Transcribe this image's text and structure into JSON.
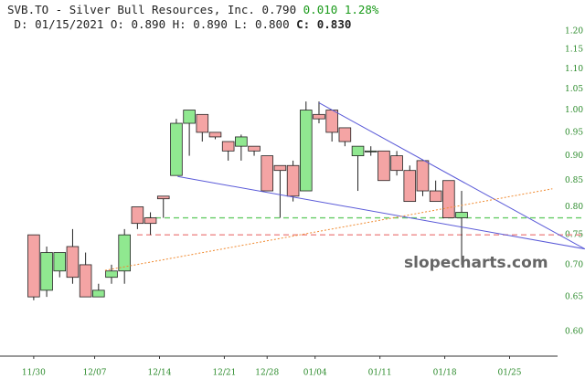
{
  "header": {
    "symbol": "SVB.TO - Silver Bull Resources, Inc.",
    "price": "0.790",
    "change": "0.010",
    "change_pct": "1.28%",
    "date": "D: 01/15/2021",
    "open": "O: 0.890",
    "high": "H: 0.890",
    "low": "L: 0.800",
    "close_label": "C:",
    "close": "0.830"
  },
  "watermark": "slopecharts.com",
  "chart_data": {
    "type": "candlestick",
    "log_scale": true,
    "up_color": "#90e890",
    "down_color": "#f4a4a4",
    "categories": [
      null,
      null,
      null,
      null,
      null,
      null,
      null,
      null,
      null,
      null,
      null,
      null,
      null,
      null,
      null,
      null,
      null,
      null,
      null,
      null,
      null,
      null,
      null,
      null,
      null,
      null,
      null,
      null,
      null,
      null,
      null,
      null,
      null,
      null
    ],
    "open": [
      0.75,
      0.66,
      0.69,
      0.73,
      0.7,
      0.65,
      0.68,
      0.69,
      0.8,
      0.78,
      0.82,
      0.86,
      0.97,
      0.99,
      0.95,
      0.93,
      0.92,
      0.92,
      0.9,
      0.88,
      0.88,
      0.83,
      0.99,
      1.0,
      0.96,
      0.9,
      0.91,
      0.91,
      0.9,
      0.87,
      0.89,
      0.83,
      0.85,
      0.78
    ],
    "high": [
      0.75,
      0.73,
      0.72,
      0.76,
      0.72,
      0.67,
      0.7,
      0.76,
      0.8,
      0.79,
      0.82,
      0.98,
      1.0,
      0.99,
      0.95,
      0.93,
      0.945,
      0.92,
      0.9,
      0.88,
      0.89,
      1.02,
      1.02,
      1.0,
      0.96,
      0.92,
      0.92,
      0.91,
      0.91,
      0.88,
      0.89,
      0.85,
      0.85,
      0.83
    ],
    "low": [
      0.645,
      0.65,
      0.68,
      0.67,
      0.65,
      0.65,
      0.67,
      0.67,
      0.76,
      0.75,
      0.78,
      0.86,
      0.9,
      0.93,
      0.935,
      0.89,
      0.89,
      0.9,
      0.83,
      0.78,
      0.81,
      0.83,
      0.97,
      0.93,
      0.92,
      0.83,
      0.9,
      0.85,
      0.86,
      0.81,
      0.82,
      0.81,
      0.78,
      0.7
    ],
    "close": [
      0.65,
      0.72,
      0.72,
      0.68,
      0.65,
      0.66,
      0.69,
      0.75,
      0.77,
      0.77,
      0.815,
      0.97,
      1.0,
      0.95,
      0.94,
      0.91,
      0.94,
      0.91,
      0.83,
      0.87,
      0.82,
      1.0,
      0.98,
      0.95,
      0.93,
      0.92,
      0.91,
      0.85,
      0.87,
      0.81,
      0.83,
      0.81,
      0.78,
      0.79
    ],
    "xlim": [
      -2.6,
      40.4
    ],
    "xticks": [
      {
        "value": 0,
        "label": "11/30"
      },
      {
        "value": 4.7,
        "label": "12/07"
      },
      {
        "value": 9.7,
        "label": "12/14"
      },
      {
        "value": 14.7,
        "label": "12/21"
      },
      {
        "value": 18,
        "label": "12/28"
      },
      {
        "value": 21.7,
        "label": "01/04"
      },
      {
        "value": 26.7,
        "label": "01/11"
      },
      {
        "value": 31.7,
        "label": "01/18"
      },
      {
        "value": 36.7,
        "label": "01/25"
      }
    ],
    "ylim": [
      0.567,
      1.289
    ],
    "yticks": [
      {
        "value": 0.6,
        "label": "0.60"
      },
      {
        "value": 0.65,
        "label": "0.65"
      },
      {
        "value": 0.7,
        "label": "0.70"
      },
      {
        "value": 0.75,
        "label": "0.75"
      },
      {
        "value": 0.8,
        "label": "0.80"
      },
      {
        "value": 0.85,
        "label": "0.85"
      },
      {
        "value": 0.9,
        "label": "0.90"
      },
      {
        "value": 0.95,
        "label": "0.95"
      },
      {
        "value": 1,
        "label": "1.00"
      },
      {
        "value": 1.05,
        "label": "1.05"
      },
      {
        "value": 1.1,
        "label": "1.10"
      },
      {
        "value": 1.15,
        "label": "1.15"
      },
      {
        "value": 1.2,
        "label": "1.20"
      }
    ],
    "hlines": [
      {
        "value": 0.78,
        "color": "#66cc66"
      },
      {
        "value": 0.75,
        "color": "#ee8888"
      }
    ],
    "trendlines": [
      {
        "x": [
          11.1,
          42.5
        ],
        "y": [
          0.858,
          0.726
        ],
        "color": "#5a5ad8",
        "dash": false
      },
      {
        "x": [
          22,
          42.5
        ],
        "y": [
          1.017,
          0.726
        ],
        "color": "#5a5ad8",
        "dash": false
      },
      {
        "x": [
          5.5,
          40
        ],
        "y": [
          0.691,
          0.834
        ],
        "color": "#f08a30",
        "dash": true
      }
    ]
  }
}
